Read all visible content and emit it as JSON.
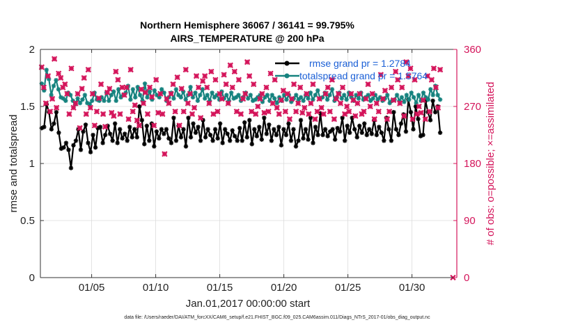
{
  "chart_data": {
    "type": "line",
    "title": "Northern Hemisphere 36067 / 36141 = 99.795%",
    "subtitle": "AIRS_TEMPERATURE @ 200 hPa",
    "xlabel": "Jan.01,2017 00:00:00 start",
    "ylabel": "rmse and totalspread",
    "ylabel_right": "# of obs: o=possible; ×=assimilated",
    "xlim": [
      1,
      33.5
    ],
    "ylim": [
      0,
      2
    ],
    "ylim_right": [
      0,
      360
    ],
    "x_ticks": [
      {
        "value": 5,
        "label": "01/05"
      },
      {
        "value": 10,
        "label": "01/10"
      },
      {
        "value": 15,
        "label": "01/15"
      },
      {
        "value": 20,
        "label": "01/20"
      },
      {
        "value": 25,
        "label": "01/25"
      },
      {
        "value": 30,
        "label": "01/30"
      }
    ],
    "y_ticks": [
      {
        "value": 0,
        "label": "0"
      },
      {
        "value": 0.5,
        "label": "0.5"
      },
      {
        "value": 1,
        "label": "1"
      },
      {
        "value": 1.5,
        "label": "1.5"
      },
      {
        "value": 2,
        "label": "2"
      }
    ],
    "y_ticks_right": [
      {
        "value": 0,
        "label": "0"
      },
      {
        "value": 90,
        "label": "90"
      },
      {
        "value": 180,
        "label": "180"
      },
      {
        "value": 270,
        "label": "270"
      },
      {
        "value": 360,
        "label": "360"
      }
    ],
    "grid": true,
    "legend_position": "top-right",
    "series": [
      {
        "name": "rmse grand pr = 1.2784",
        "color": "#000000",
        "axis": "left",
        "marker": "asterisk",
        "values": [
          1.31,
          1.32,
          1.52,
          1.45,
          1.3,
          1.35,
          1.45,
          1.27,
          1.13,
          1.14,
          1.18,
          1.12,
          0.96,
          1.16,
          1.2,
          1.3,
          1.12,
          1.28,
          1.34,
          1.18,
          1.1,
          1.25,
          1.14,
          1.31,
          1.32,
          1.18,
          1.25,
          1.33,
          1.26,
          1.2,
          1.35,
          1.18,
          1.3,
          1.22,
          1.26,
          1.2,
          1.32,
          1.23,
          1.3,
          1.23,
          1.5,
          1.38,
          1.17,
          1.33,
          1.2,
          1.35,
          1.15,
          1.28,
          1.22,
          1.3,
          1.26,
          1.3,
          1.22,
          1.18,
          1.4,
          1.2,
          1.33,
          1.23,
          1.3,
          1.15,
          1.4,
          1.23,
          1.35,
          1.27,
          1.32,
          1.2,
          1.38,
          1.23,
          1.3,
          1.25,
          1.2,
          1.3,
          1.22,
          1.35,
          1.18,
          1.3,
          1.26,
          1.2,
          1.29,
          1.24,
          1.2,
          1.31,
          1.2,
          1.36,
          1.23,
          1.38,
          1.17,
          1.3,
          1.24,
          1.32,
          1.21,
          1.4,
          1.26,
          1.34,
          1.2,
          1.3,
          1.25,
          1.32,
          1.16,
          1.3,
          1.25,
          1.35,
          1.2,
          1.3,
          1.15,
          1.2,
          1.38,
          1.22,
          1.3,
          1.21,
          1.4,
          1.18,
          1.32,
          1.25,
          1.44,
          1.25,
          1.3,
          1.24,
          1.28,
          1.3,
          1.21,
          1.31,
          1.28,
          1.4,
          1.2,
          1.33,
          1.27,
          1.4,
          1.3,
          1.23,
          1.33,
          1.27,
          1.35,
          1.25,
          1.3,
          1.26,
          1.38,
          1.25,
          1.32,
          1.27,
          1.2,
          1.4,
          1.3,
          1.2,
          1.45,
          1.3,
          1.25,
          1.35,
          1.43,
          1.28,
          1.56,
          1.45,
          1.3,
          1.5,
          1.39,
          1.24,
          1.25,
          1.55,
          1.45,
          1.38,
          1.55,
          1.45,
          1.5,
          1.27
        ]
      },
      {
        "name": "totalspread grand pr = 1.5764",
        "color": "#15827e",
        "axis": "left",
        "marker": "asterisk",
        "values": [
          1.7,
          1.64,
          1.82,
          1.74,
          1.6,
          1.68,
          1.73,
          1.65,
          1.58,
          1.57,
          1.55,
          1.62,
          1.6,
          1.55,
          1.52,
          1.57,
          1.53,
          1.56,
          1.6,
          1.53,
          1.52,
          1.55,
          1.62,
          1.56,
          1.55,
          1.58,
          1.55,
          1.62,
          1.55,
          1.6,
          1.63,
          1.55,
          1.65,
          1.58,
          1.6,
          1.62,
          1.68,
          1.56,
          1.65,
          1.58,
          1.67,
          1.6,
          1.55,
          1.7,
          1.58,
          1.63,
          1.56,
          1.64,
          1.6,
          1.58,
          1.65,
          1.62,
          1.55,
          1.58,
          1.62,
          1.57,
          1.65,
          1.6,
          1.58,
          1.63,
          1.56,
          1.6,
          1.67,
          1.58,
          1.62,
          1.55,
          1.6,
          1.65,
          1.57,
          1.6,
          1.55,
          1.62,
          1.58,
          1.6,
          1.56,
          1.63,
          1.57,
          1.6,
          1.55,
          1.62,
          1.57,
          1.58,
          1.6,
          1.55,
          1.58,
          1.62,
          1.57,
          1.6,
          1.55,
          1.56,
          1.58,
          1.6,
          1.54,
          1.58,
          1.6,
          1.55,
          1.6,
          1.57,
          1.53,
          1.58,
          1.55,
          1.6,
          1.56,
          1.6,
          1.54,
          1.57,
          1.6,
          1.56,
          1.58,
          1.55,
          1.6,
          1.57,
          1.62,
          1.56,
          1.6,
          1.64,
          1.57,
          1.58,
          1.62,
          1.56,
          1.6,
          1.65,
          1.55,
          1.58,
          1.62,
          1.57,
          1.6,
          1.56,
          1.62,
          1.58,
          1.55,
          1.6,
          1.57,
          1.62,
          1.56,
          1.58,
          1.6,
          1.55,
          1.57,
          1.6,
          1.56,
          1.58,
          1.55,
          1.57,
          1.6,
          1.53,
          1.55,
          1.56,
          1.6,
          1.55,
          1.58,
          1.54,
          1.6,
          1.56,
          1.62,
          1.58,
          1.53,
          1.6,
          1.55,
          1.62,
          1.58,
          1.56,
          1.65,
          1.6,
          1.68,
          1.6,
          1.56
        ]
      },
      {
        "name": "# of obs assimilated",
        "color": "#d4145a",
        "axis": "right",
        "marker": "x",
        "values": [
          332,
          300,
          275,
          318,
          262,
          282,
          345,
          268,
          322,
          315,
          300,
          305,
          290,
          258,
          330,
          268,
          275,
          290,
          236,
          298,
          315,
          258,
          328,
          268,
          290,
          240,
          262,
          283,
          305,
          258,
          238,
          292,
          298,
          260,
          255,
          325,
          312,
          258,
          300,
          288,
          300,
          250,
          328,
          262,
          272,
          248,
          240,
          297,
          275,
          292,
          258,
          300,
          285,
          240,
          312,
          260,
          290,
          258,
          195,
          282,
          275,
          290,
          305,
          262,
          316,
          240,
          298,
          262,
          328,
          275,
          290,
          258,
          268,
          318,
          300,
          252,
          310,
          318,
          300,
          275,
          325,
          258,
          312,
          262,
          290,
          282,
          320,
          305,
          275,
          335,
          300,
          325,
          262,
          312,
          258,
          282,
          290,
          340,
          318,
          262,
          305,
          258,
          270,
          282,
          290,
          260,
          300,
          262,
          322,
          275,
          312,
          268,
          258,
          280,
          295,
          262,
          290,
          250,
          282,
          305,
          262,
          275,
          300,
          260,
          268,
          290,
          258,
          275,
          305,
          250,
          262,
          282,
          268,
          258,
          290,
          300,
          262,
          312,
          250,
          282,
          290,
          275,
          300,
          258,
          270,
          262,
          290,
          280,
          255,
          275,
          290,
          258,
          262,
          282,
          305,
          270,
          290,
          250,
          275,
          262,
          320,
          282,
          295,
          250,
          262,
          300,
          280,
          325,
          312,
          275,
          300,
          255,
          340,
          318,
          330,
          250,
          312,
          258,
          270,
          260,
          280,
          250,
          318,
          262,
          312,
          330,
          300,
          268,
          328
        ]
      }
    ],
    "extra_points": [
      {
        "x": 33.2,
        "y_right": 0,
        "label": "0"
      }
    ],
    "footer": "data file: /Users/raeder/DAI/ATM_forcXX/CAM6_setup/f.e21.FHIST_BGC.f09_025.CAM6assim.011/Diags_NTrS_2017-01/obs_diag_output.nc"
  }
}
